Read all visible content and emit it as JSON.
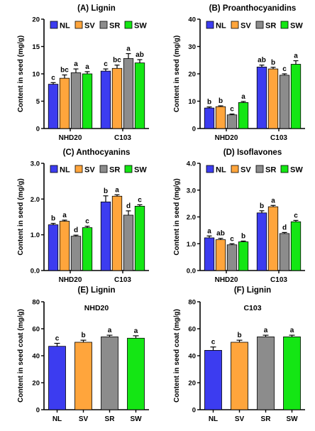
{
  "colors": {
    "NL": "#3c3cf0",
    "SV": "#ffa53c",
    "SR": "#8c8c8c",
    "SW": "#14e614"
  },
  "chart_data": [
    {
      "type": "bar",
      "title": "(A) Lignin",
      "ylabel": "Content in seed (mg/g)",
      "ylim": [
        0,
        20
      ],
      "yticks": [
        "0",
        "5",
        "10",
        "15",
        "20"
      ],
      "legend": [
        "NL",
        "SV",
        "SR",
        "SW"
      ],
      "categories": [
        "NHD20",
        "C103"
      ],
      "series": [
        {
          "name": "NL",
          "values": [
            8.1,
            10.5
          ],
          "errors": [
            0.3,
            0.4
          ],
          "labels": [
            "c",
            "c"
          ]
        },
        {
          "name": "SV",
          "values": [
            9.2,
            11.0
          ],
          "errors": [
            0.6,
            0.6
          ],
          "labels": [
            "bc",
            "bc"
          ]
        },
        {
          "name": "SR",
          "values": [
            10.2,
            12.8
          ],
          "errors": [
            0.7,
            0.9
          ],
          "labels": [
            "a",
            "a"
          ]
        },
        {
          "name": "SW",
          "values": [
            10.0,
            12.0
          ],
          "errors": [
            0.4,
            0.6
          ],
          "labels": [
            "a",
            "ab"
          ]
        }
      ]
    },
    {
      "type": "bar",
      "title": "(B) Proanthocyanidins",
      "ylabel": "Content in seed (mg/g)",
      "ylim": [
        0,
        40
      ],
      "yticks": [
        "0",
        "10",
        "20",
        "30",
        "40"
      ],
      "legend": [
        "NL",
        "SV",
        "SR",
        "SW"
      ],
      "categories": [
        "NHD20",
        "C103"
      ],
      "series": [
        {
          "name": "NL",
          "values": [
            7.5,
            22.5
          ],
          "errors": [
            0.4,
            0.7
          ],
          "labels": [
            "b",
            "ab"
          ]
        },
        {
          "name": "SV",
          "values": [
            8.0,
            21.8
          ],
          "errors": [
            0.3,
            0.6
          ],
          "labels": [
            "b",
            "b"
          ]
        },
        {
          "name": "SR",
          "values": [
            5.0,
            19.5
          ],
          "errors": [
            0.3,
            0.5
          ],
          "labels": [
            "c",
            "c"
          ]
        },
        {
          "name": "SW",
          "values": [
            9.5,
            23.5
          ],
          "errors": [
            0.4,
            1.3
          ],
          "labels": [
            "a",
            "a"
          ]
        }
      ]
    },
    {
      "type": "bar",
      "title": "(C) Anthocyanins",
      "ylabel": "Content in seed (mg/g)",
      "ylim": [
        0,
        3
      ],
      "yticks": [
        "0.0",
        "1.0",
        "2.0",
        "3.0"
      ],
      "legend": [
        "NL",
        "SV",
        "SR",
        "SW"
      ],
      "categories": [
        "NHD20",
        "C103"
      ],
      "series": [
        {
          "name": "NL",
          "values": [
            1.28,
            1.92
          ],
          "errors": [
            0.04,
            0.17
          ],
          "labels": [
            "b",
            "b"
          ]
        },
        {
          "name": "SV",
          "values": [
            1.38,
            2.08
          ],
          "errors": [
            0.03,
            0.04
          ],
          "labels": [
            "a",
            "a"
          ]
        },
        {
          "name": "SR",
          "values": [
            0.96,
            1.55
          ],
          "errors": [
            0.03,
            0.12
          ],
          "labels": [
            "d",
            "d"
          ]
        },
        {
          "name": "SW",
          "values": [
            1.2,
            1.8
          ],
          "errors": [
            0.04,
            0.04
          ],
          "labels": [
            "c",
            "c"
          ]
        }
      ]
    },
    {
      "type": "bar",
      "title": "(D) Isoflavones",
      "ylabel": "Content in seed (mg/g)",
      "ylim": [
        0,
        4
      ],
      "yticks": [
        "0.0",
        "1.0",
        "2.0",
        "3.0",
        "4.0"
      ],
      "legend": [
        "NL",
        "SV",
        "SR",
        "SW"
      ],
      "categories": [
        "NHD20",
        "C103"
      ],
      "series": [
        {
          "name": "NL",
          "values": [
            1.22,
            2.15
          ],
          "errors": [
            0.07,
            0.08
          ],
          "labels": [
            "a",
            "b"
          ]
        },
        {
          "name": "SV",
          "values": [
            1.15,
            2.38
          ],
          "errors": [
            0.05,
            0.05
          ],
          "labels": [
            "ab",
            "a"
          ]
        },
        {
          "name": "SR",
          "values": [
            0.96,
            1.38
          ],
          "errors": [
            0.04,
            0.04
          ],
          "labels": [
            "c",
            "d"
          ]
        },
        {
          "name": "SW",
          "values": [
            1.07,
            1.82
          ],
          "errors": [
            0.03,
            0.05
          ],
          "labels": [
            "b",
            "c"
          ]
        }
      ]
    },
    {
      "type": "bar",
      "title": "(E) Lignin",
      "subtitle": "NHD20",
      "ylabel": "Content in seed coat (mg/g)",
      "ylim": [
        0,
        80
      ],
      "yticks": [
        "0",
        "20",
        "40",
        "60",
        "80"
      ],
      "categories": [
        "NL",
        "SV",
        "SR",
        "SW"
      ],
      "values": [
        47,
        50,
        54,
        53
      ],
      "errors": [
        2.2,
        1.5,
        1.2,
        1.8
      ],
      "labels": [
        "c",
        "b",
        "a",
        "a"
      ]
    },
    {
      "type": "bar",
      "title": "(F) Lignin",
      "subtitle": "C103",
      "ylabel": "Content in seed coat (mg/g)",
      "ylim": [
        0,
        80
      ],
      "yticks": [
        "0",
        "20",
        "40",
        "60",
        "80"
      ],
      "categories": [
        "NL",
        "SV",
        "SR",
        "SW"
      ],
      "values": [
        44,
        50,
        54,
        54
      ],
      "errors": [
        2.5,
        1.5,
        1.2,
        1.2
      ],
      "labels": [
        "c",
        "b",
        "a",
        "a"
      ]
    }
  ]
}
